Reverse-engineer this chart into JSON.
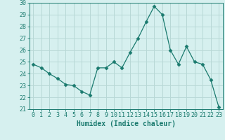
{
  "x": [
    0,
    1,
    2,
    3,
    4,
    5,
    6,
    7,
    8,
    9,
    10,
    11,
    12,
    13,
    14,
    15,
    16,
    17,
    18,
    19,
    20,
    21,
    22,
    23
  ],
  "y": [
    24.8,
    24.5,
    24.0,
    23.6,
    23.1,
    23.0,
    22.5,
    22.2,
    24.5,
    24.5,
    25.0,
    24.5,
    25.8,
    27.0,
    28.4,
    29.7,
    29.0,
    26.0,
    24.8,
    26.3,
    25.0,
    24.8,
    23.5,
    21.2
  ],
  "line_color": "#1a7a6e",
  "marker": "D",
  "marker_size": 2.5,
  "bg_color": "#d6f0ef",
  "grid_color": "#b8d8d6",
  "tick_color": "#1a7a6e",
  "xlabel": "Humidex (Indice chaleur)",
  "ylim": [
    21,
    30
  ],
  "xlim": [
    -0.5,
    23.5
  ],
  "yticks": [
    21,
    22,
    23,
    24,
    25,
    26,
    27,
    28,
    29,
    30
  ],
  "xticks": [
    0,
    1,
    2,
    3,
    4,
    5,
    6,
    7,
    8,
    9,
    10,
    11,
    12,
    13,
    14,
    15,
    16,
    17,
    18,
    19,
    20,
    21,
    22,
    23
  ],
  "tick_fontsize": 6,
  "label_fontsize": 7
}
